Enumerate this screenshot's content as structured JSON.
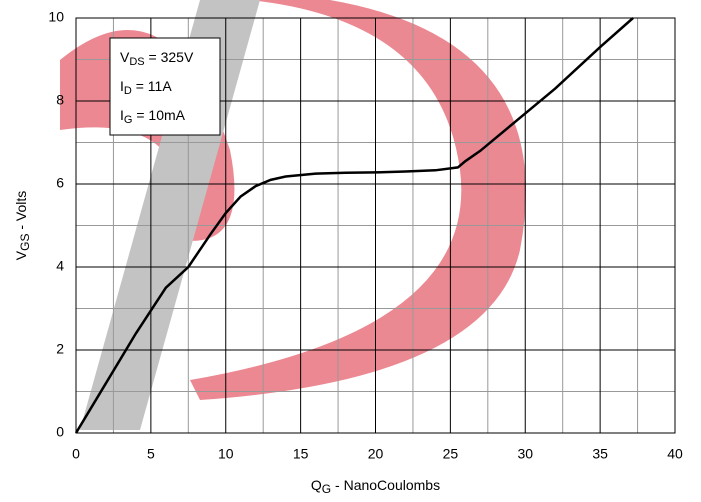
{
  "chart_data": {
    "type": "line",
    "x_label": {
      "main": "Q",
      "sub": "G",
      "rest": " - NanoCoulombs"
    },
    "y_label": {
      "main": "V",
      "sub": "GS",
      "rest": " - Volts"
    },
    "annotations": [
      {
        "main": "V",
        "sub": "DS",
        "rest": " = 325V"
      },
      {
        "main": "I",
        "sub": "D",
        "rest": " = 11A"
      },
      {
        "main": "I",
        "sub": "G",
        "rest": " = 10mA"
      }
    ],
    "x": [
      0,
      2,
      4,
      6,
      7.5,
      9,
      10,
      11,
      12,
      13,
      14,
      16,
      18,
      20,
      22,
      24,
      25.5,
      26,
      27,
      28,
      30,
      32,
      35,
      37.2
    ],
    "series": [
      {
        "color": "#000000",
        "values": [
          0,
          1.2,
          2.4,
          3.5,
          4.0,
          4.8,
          5.3,
          5.7,
          5.95,
          6.1,
          6.18,
          6.25,
          6.27,
          6.28,
          6.3,
          6.33,
          6.4,
          6.55,
          6.8,
          7.1,
          7.7,
          8.3,
          9.3,
          10
        ]
      }
    ],
    "xlim": [
      0,
      40
    ],
    "xticks": [
      0,
      5,
      10,
      15,
      20,
      25,
      30,
      35,
      40
    ],
    "x_minor_ticks": [
      2.5,
      7.5,
      12.5,
      17.5,
      22.5,
      27.5,
      32.5,
      37.5
    ],
    "ylim": [
      0,
      10
    ],
    "yticks": [
      0,
      2,
      4,
      6,
      8,
      10
    ],
    "y_minor_ticks": [
      1,
      3,
      5,
      7,
      9
    ],
    "grid": true
  }
}
